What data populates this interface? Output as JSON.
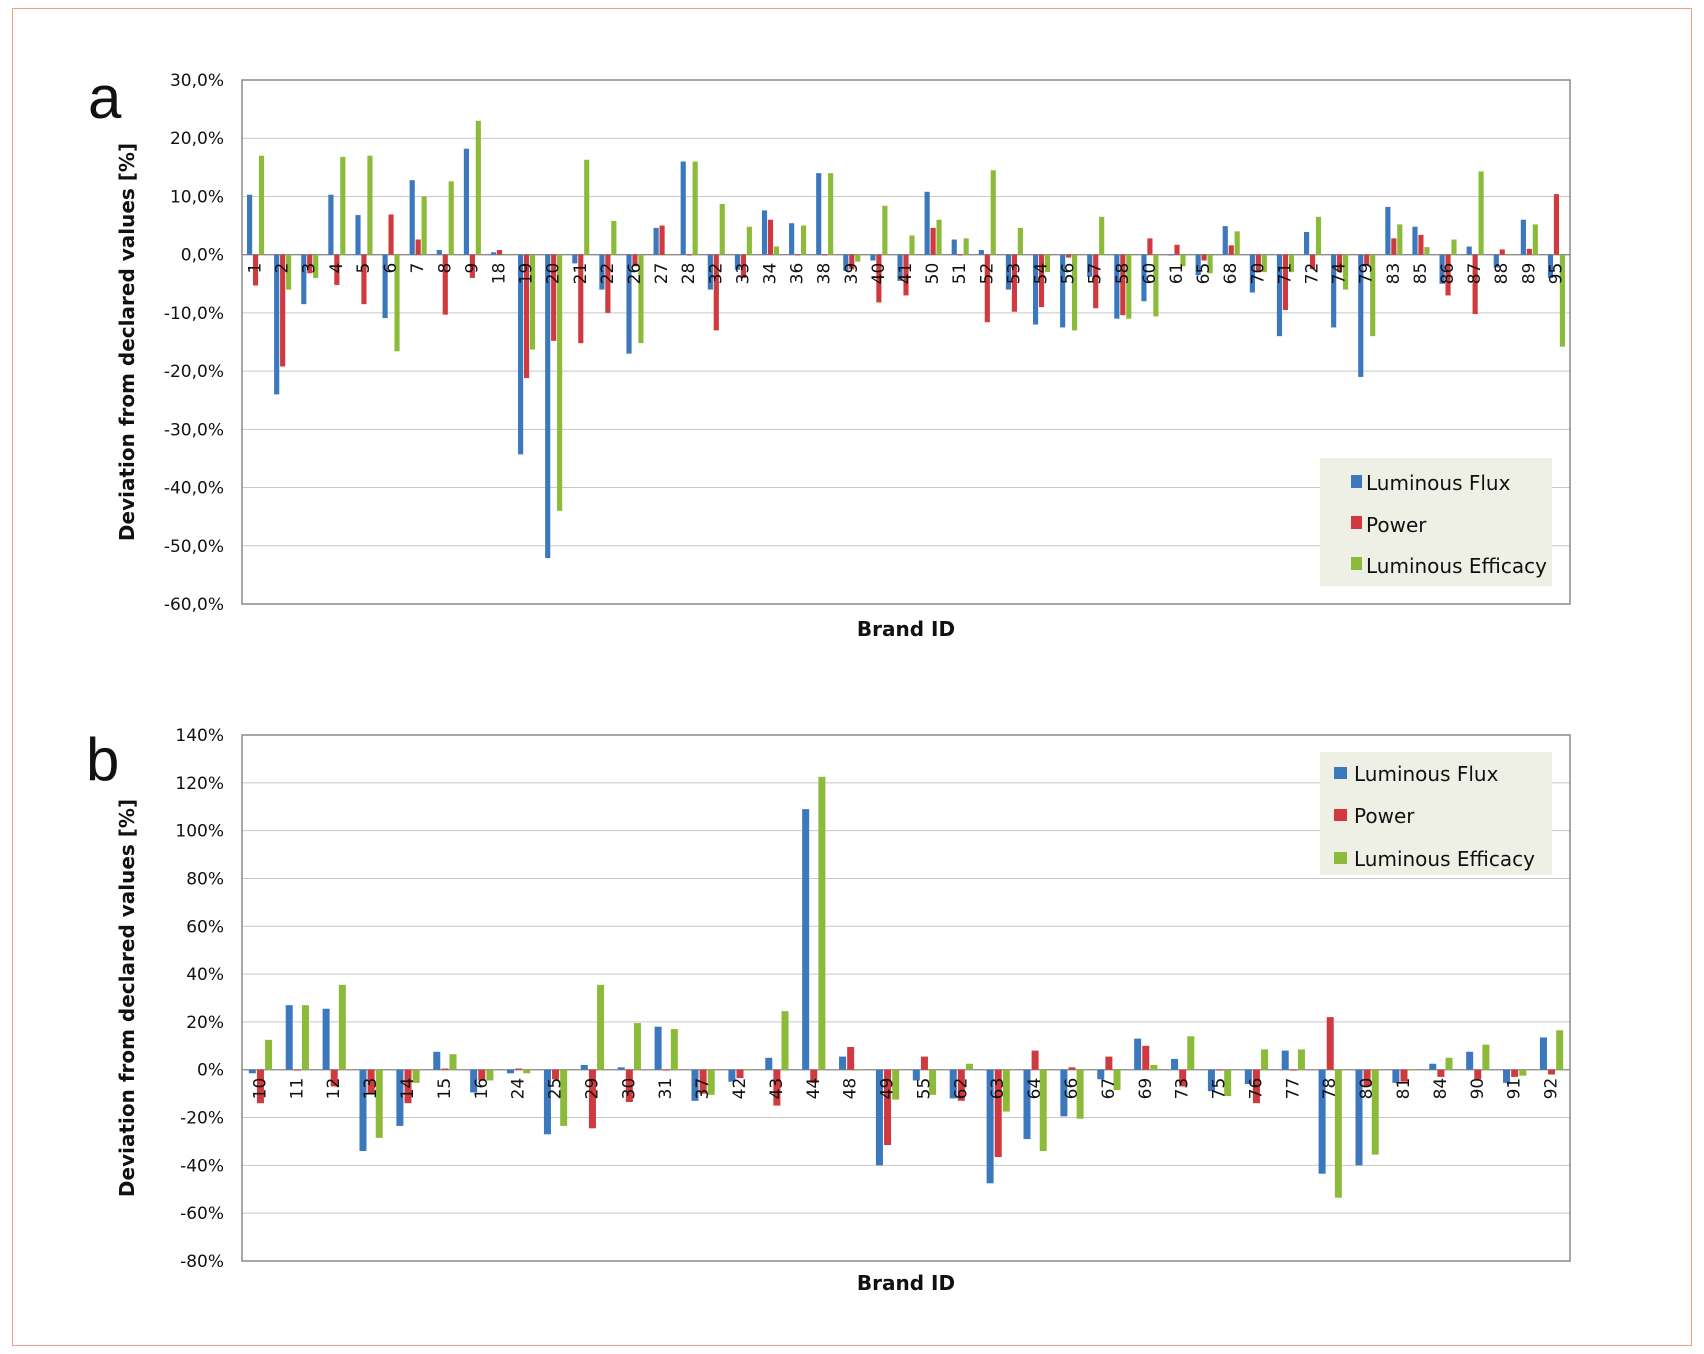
{
  "colors": {
    "luminous_flux": "#3b78be",
    "power": "#d03a3f",
    "luminous_efficacy": "#8cbb3a",
    "grid": "#c8c8c8",
    "axis": "#8a8a8a",
    "legend_bg": "#eef0e6"
  },
  "chart_data": [
    {
      "panel_label": "a",
      "type": "bar",
      "xlabel": "Brand ID",
      "ylabel": "Deviation from declared values [%]",
      "ylim": [
        -60,
        30
      ],
      "ytick_values": [
        30,
        20,
        10,
        0,
        -10,
        -20,
        -30,
        -40,
        -50,
        -60
      ],
      "ytick_labels": [
        "30,0%",
        "20,0%",
        "10,0%",
        "0,0%",
        "-10,0%",
        "-20,0%",
        "-30,0%",
        "-40,0%",
        "-50,0%",
        "-60,0%"
      ],
      "grid": true,
      "legend_position": "bottom-right",
      "categories": [
        "1",
        "2",
        "3",
        "4",
        "5",
        "6",
        "7",
        "8",
        "9",
        "18",
        "19",
        "20",
        "21",
        "22",
        "26",
        "27",
        "28",
        "32",
        "33",
        "34",
        "36",
        "38",
        "39",
        "40",
        "41",
        "50",
        "51",
        "52",
        "53",
        "54",
        "56",
        "57",
        "58",
        "60",
        "61",
        "65",
        "68",
        "70",
        "71",
        "72",
        "74",
        "79",
        "83",
        "85",
        "86",
        "87",
        "88",
        "89",
        "95"
      ],
      "series": [
        {
          "name": "Luminous Flux",
          "values": [
            10.3,
            -24,
            -8.5,
            10.3,
            6.8,
            -10.9,
            12.8,
            0.8,
            18.2,
            0.4,
            -34.3,
            -52.1,
            -1.5,
            -6,
            -17,
            4.6,
            16,
            -6,
            -2.6,
            7.6,
            5.4,
            14,
            -2.8,
            -1,
            -4.5,
            10.8,
            2.6,
            0.8,
            -6,
            -12,
            -12.5,
            -3.8,
            -11,
            -8,
            0,
            -3.5,
            4.9,
            -6.5,
            -14,
            3.9,
            -12.5,
            -21,
            8.2,
            4.8,
            -5,
            1.4,
            -2.2,
            6,
            -4
          ]
        },
        {
          "name": "Power",
          "values": [
            -5.3,
            -19.2,
            -3.2,
            -5.2,
            -8.5,
            6.9,
            2.6,
            -10.3,
            -4,
            0.8,
            -21.2,
            -14.8,
            -15.2,
            -10,
            -2,
            5,
            0,
            -13,
            -4,
            6,
            0,
            0,
            -2.5,
            -8.2,
            -7,
            4.6,
            0,
            -11.6,
            -9.8,
            -9,
            -0.5,
            -9.2,
            -10.4,
            2.8,
            1.7,
            -1,
            1.6,
            -3,
            -9.5,
            -2.5,
            -3,
            -1.8,
            2.8,
            3.4,
            -7,
            -10.2,
            0.9,
            1,
            10.4
          ]
        },
        {
          "name": "Luminous Efficacy",
          "values": [
            17,
            -6,
            -4,
            16.8,
            17,
            -16.6,
            10,
            12.6,
            23,
            0,
            -16.3,
            -44,
            16.3,
            5.8,
            -15.2,
            0,
            16,
            8.7,
            4.8,
            1.4,
            5,
            14,
            -1.2,
            8.4,
            3.3,
            6,
            2.8,
            14.5,
            4.6,
            -3,
            -13,
            6.5,
            -11,
            -10.6,
            -2,
            -3.2,
            4,
            -3,
            -3,
            6.5,
            -6,
            -14,
            5.2,
            1.3,
            2.6,
            14.3,
            0,
            5.2,
            -15.8
          ]
        }
      ],
      "legend": [
        "Luminous Flux",
        "Power",
        "Luminous Efficacy"
      ]
    },
    {
      "panel_label": "b",
      "type": "bar",
      "xlabel": "Brand ID",
      "ylabel": "Deviation from declared values [%]",
      "ylim": [
        -80,
        140
      ],
      "ytick_values": [
        140,
        120,
        100,
        80,
        60,
        40,
        20,
        0,
        -20,
        -40,
        -60,
        -80
      ],
      "ytick_labels": [
        "140%",
        "120%",
        "100%",
        "80%",
        "60%",
        "40%",
        "20%",
        "0%",
        "-20%",
        "-40%",
        "-60%",
        "-80%"
      ],
      "grid": true,
      "legend_position": "top-right",
      "categories": [
        "10",
        "11",
        "12",
        "13",
        "14",
        "15",
        "16",
        "24",
        "25",
        "29",
        "30",
        "31",
        "37",
        "42",
        "43",
        "44",
        "48",
        "49",
        "55",
        "62",
        "63",
        "64",
        "66",
        "67",
        "69",
        "73",
        "75",
        "76",
        "77",
        "78",
        "80",
        "81",
        "84",
        "90",
        "91",
        "92"
      ],
      "series": [
        {
          "name": "Luminous Flux",
          "values": [
            -1.5,
            27,
            25.5,
            -34,
            -23.5,
            7.5,
            -9.5,
            -1.5,
            -27,
            2,
            1,
            18,
            -13,
            -5,
            5,
            109,
            5.5,
            -40,
            -4.5,
            -12,
            -47.5,
            -29,
            -19.5,
            -4,
            13,
            4.5,
            -9,
            -6,
            8,
            -43.5,
            -40,
            -5.5,
            2.5,
            7.5,
            -5.5,
            13.5
          ]
        },
        {
          "name": "Power",
          "values": [
            -14,
            0,
            -7,
            -10,
            -14,
            0.5,
            -4.5,
            0.5,
            -4,
            -24.5,
            -13.5,
            0,
            -10,
            -3.5,
            -15,
            -5.5,
            9.5,
            -31.5,
            5.5,
            -13,
            -36.5,
            8,
            1,
            5.5,
            10,
            -7,
            0,
            -14,
            0,
            22,
            -7,
            -5,
            -3,
            -4,
            -3,
            -2
          ]
        },
        {
          "name": "Luminous Efficacy",
          "values": [
            12.5,
            27,
            35.5,
            -28.5,
            -5.5,
            6.5,
            -4.5,
            -1.5,
            -23.5,
            35.5,
            19.5,
            17,
            -10.5,
            0,
            24.5,
            122.5,
            0,
            -12.5,
            -10.5,
            2.5,
            -17.5,
            -34,
            -20.5,
            -8.5,
            2,
            14,
            -11,
            8.5,
            8.5,
            -53.5,
            -35.5,
            0,
            5,
            10.5,
            -2.5,
            16.5
          ]
        }
      ],
      "legend": [
        "Luminous Flux",
        "Power",
        "Luminous Efficacy"
      ]
    }
  ]
}
